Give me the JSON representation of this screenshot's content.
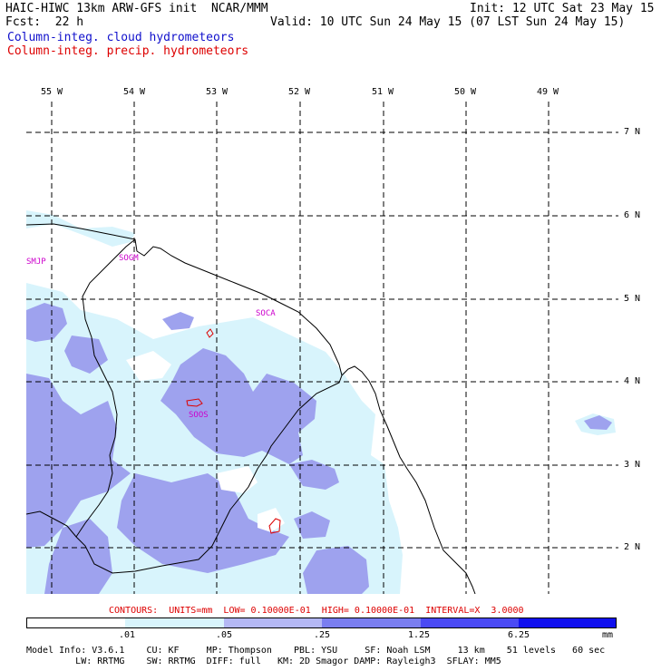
{
  "header": {
    "left_line1": "HAIC-HIWC 13km ARW-GFS init  NCAR/MMM",
    "left_line2": "Fcst:  22 h",
    "right_line1": "Init: 12 UTC Sat 23 May 15",
    "right_line2": "Valid: 10 UTC Sun 24 May 15 (07 LST Sun 24 May 15)",
    "field1": "Column-integ. cloud hydrometeors",
    "field2": "Column-integ. precip. hydrometeors"
  },
  "map": {
    "lon_labels": [
      "55 W",
      "54 W",
      "53 W",
      "52 W",
      "51 W",
      "50 W",
      "49 W"
    ],
    "lat_labels": [
      "7 N",
      "6 N",
      "5 N",
      "4 N",
      "3 N",
      "2 N"
    ],
    "stations": [
      "SMJP",
      "SOGM",
      "SOCA",
      "SOOS"
    ],
    "colors": {
      "coast": "#000000",
      "grid": "#000000",
      "cloud_light": "#d8f4fc",
      "cloud_mid": "#9ea2ee",
      "precip_contour": "#dd0000",
      "station": "#cc00cc"
    }
  },
  "contours_note": "CONTOURS:  UNITS=mm  LOW= 0.10000E-01  HIGH= 0.10000E-01  INTERVAL=X  3.0000",
  "colorbar": {
    "labels": [
      ".01",
      ".05",
      ".25",
      "1.25",
      "6.25",
      "mm"
    ],
    "colors": [
      "#ffffff",
      "#d8f4fc",
      "#b4b8f4",
      "#7a7ef0",
      "#4a4af4",
      "#1010ee"
    ]
  },
  "footer": {
    "line1": "Model Info: V3.6.1    CU: KF     MP: Thompson    PBL: YSU     SF: Noah LSM     13 km    51 levels   60 sec",
    "line2": "         LW: RRTMG    SW: RRTMG  DIFF: full   KM: 2D Smagor DAMP: Rayleigh3  SFLAY: MM5"
  }
}
